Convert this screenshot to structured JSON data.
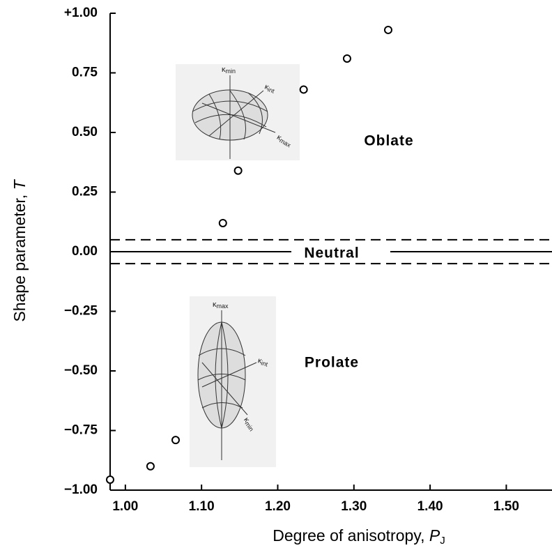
{
  "chart_data": {
    "type": "scatter",
    "x_label": "Degree of anisotropy,",
    "x_label_symbol": "P",
    "x_label_sub": "J",
    "y_label": "Shape parameter,",
    "y_label_symbol": "T",
    "x": [
      0.98,
      1.033,
      1.066,
      1.128,
      1.148,
      1.234,
      1.291,
      1.345
    ],
    "values": [
      -0.956,
      -0.9,
      -0.79,
      0.12,
      0.34,
      0.68,
      0.81,
      0.93
    ],
    "xlim": [
      0.98,
      1.56
    ],
    "ylim": [
      -1.0,
      1.0
    ],
    "xticks": [
      {
        "value": 1.0,
        "label": "1.00"
      },
      {
        "value": 1.1,
        "label": "1.10"
      },
      {
        "value": 1.2,
        "label": "1.20"
      },
      {
        "value": 1.3,
        "label": "1.30"
      },
      {
        "value": 1.4,
        "label": "1.40"
      },
      {
        "value": 1.5,
        "label": "1.50"
      }
    ],
    "yticks": [
      {
        "value": -1.0,
        "label": "−1.00"
      },
      {
        "value": -0.75,
        "label": "−0.75"
      },
      {
        "value": -0.5,
        "label": "−0.50"
      },
      {
        "value": -0.25,
        "label": "−0.25"
      },
      {
        "value": 0.0,
        "label": "0.00"
      },
      {
        "value": 0.25,
        "label": "0.25"
      },
      {
        "value": 0.5,
        "label": "0.50"
      },
      {
        "value": 0.75,
        "label": "0.75"
      },
      {
        "value": 1.0,
        "label": "+1.00"
      }
    ],
    "neutral_band": [
      -0.05,
      0.05
    ],
    "annotations": {
      "oblate": "Oblate",
      "neutral": "Neutral",
      "prolate": "Prolate"
    },
    "oblate_axes": [
      {
        "symbol": "κ",
        "sub": "min"
      },
      {
        "symbol": "κ",
        "sub": "int"
      },
      {
        "symbol": "κ",
        "sub": "max"
      }
    ],
    "prolate_axes": [
      {
        "symbol": "κ",
        "sub": "max"
      },
      {
        "symbol": "κ",
        "sub": "int"
      },
      {
        "symbol": "κ",
        "sub": "min"
      }
    ]
  }
}
